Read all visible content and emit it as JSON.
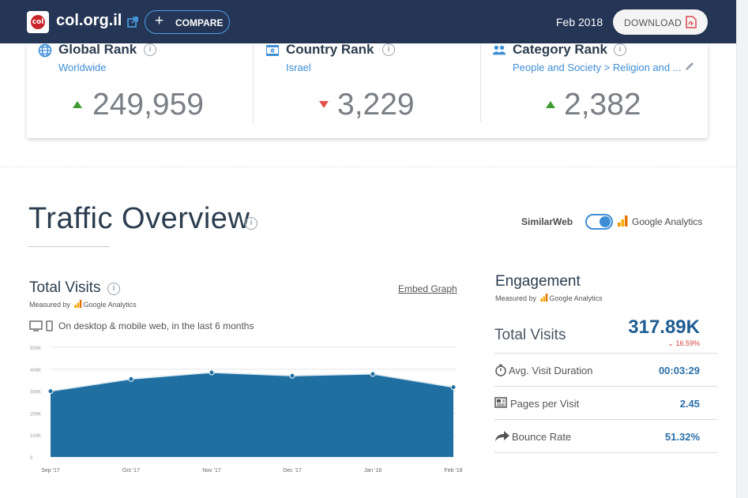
{
  "header": {
    "domain": "col.org.il",
    "compare_label": "COMPARE",
    "date": "Feb 2018",
    "download_label": "DOWNLOAD"
  },
  "ranks": [
    {
      "title": "Global Rank",
      "sub": "Worldwide",
      "value": "249,959",
      "trend": "up"
    },
    {
      "title": "Country Rank",
      "sub": "Israel",
      "value": "3,229",
      "trend": "down"
    },
    {
      "title": "Category Rank",
      "sub": "People and Society > Religion and ...",
      "value": "2,382",
      "trend": "up"
    }
  ],
  "traffic": {
    "title": "Traffic Overview",
    "source_left": "SimilarWeb",
    "source_right": "Google Analytics",
    "total_visits_title": "Total Visits",
    "measured_by": "Measured by",
    "measured_source": "Google Analytics",
    "embed_label": "Embed Graph",
    "device_text": "On desktop & mobile web, in the last 6 months"
  },
  "chart_data": {
    "type": "area",
    "categories": [
      "Sep '17",
      "Oct '17",
      "Nov '17",
      "Dec '17",
      "Jan '18",
      "Feb '18"
    ],
    "values": [
      300000,
      355000,
      385000,
      370000,
      378000,
      318000
    ],
    "ylim": [
      0,
      500000
    ],
    "yticks": [
      "0",
      "100K",
      "200K",
      "300K",
      "400K",
      "500K"
    ],
    "grid": true,
    "color": "#1f6fa1"
  },
  "engagement": {
    "title": "Engagement",
    "measured_by": "Measured by",
    "measured_source": "Google Analytics",
    "total_visits_label": "Total Visits",
    "total_visits_value": "317.89K",
    "total_visits_delta": "16.59%",
    "rows": [
      {
        "label": "Avg. Visit Duration",
        "value": "00:03:29",
        "icon": "stopwatch-icon"
      },
      {
        "label": "Pages per Visit",
        "value": "2.45",
        "icon": "pages-icon"
      },
      {
        "label": "Bounce Rate",
        "value": "51.32%",
        "icon": "bounce-arrow-icon"
      }
    ]
  },
  "colors": {
    "header_bg": "#253555",
    "accent_blue": "#3e8ed6",
    "up_green": "#3f9b2f",
    "down_red": "#e2524d",
    "chart_fill": "#1f6fa1"
  }
}
